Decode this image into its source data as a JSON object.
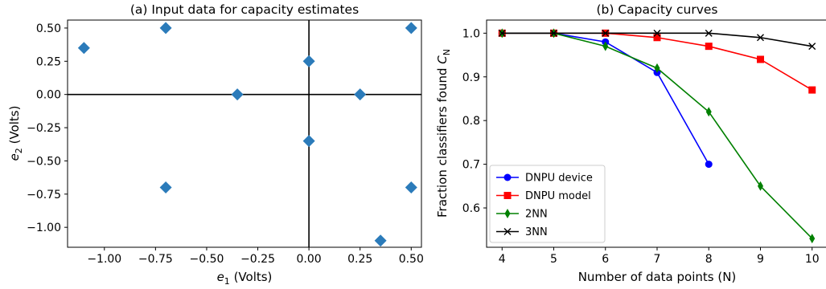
{
  "chart_data": [
    {
      "type": "scatter",
      "title": "(a) Input data for capacity estimates",
      "xlabel_var": "e",
      "xlabel_sub": "1",
      "xlabel_unit": " (Volts)",
      "ylabel_var": "e",
      "ylabel_sub": "2",
      "ylabel_unit": " (Volts)",
      "xlim": [
        -1.18,
        0.55
      ],
      "ylim": [
        -1.15,
        0.56
      ],
      "xticks": [
        -1.0,
        -0.75,
        -0.5,
        -0.25,
        0.0,
        0.25,
        0.5
      ],
      "xtick_labels": [
        "−1.00",
        "−0.75",
        "−0.50",
        "−0.25",
        "0.00",
        "0.25",
        "0.50"
      ],
      "yticks": [
        0.5,
        0.25,
        0.0,
        -0.25,
        -0.5,
        -0.75,
        -1.0
      ],
      "ytick_labels": [
        "0.50",
        "0.25",
        "0.00",
        "−0.25",
        "−0.50",
        "−0.75",
        "−1.00"
      ],
      "marker": "diamond",
      "color": "#2b7bba",
      "points": [
        {
          "x": -1.1,
          "y": 0.35
        },
        {
          "x": -0.7,
          "y": 0.5
        },
        {
          "x": 0.5,
          "y": 0.5
        },
        {
          "x": 0.0,
          "y": 0.25
        },
        {
          "x": -0.35,
          "y": 0.0
        },
        {
          "x": 0.25,
          "y": 0.0
        },
        {
          "x": 0.0,
          "y": -0.35
        },
        {
          "x": -0.7,
          "y": -0.7
        },
        {
          "x": 0.5,
          "y": -0.7
        },
        {
          "x": 0.35,
          "y": -1.1
        }
      ],
      "reference_lines": {
        "x": 0.0,
        "y": 0.0
      }
    },
    {
      "type": "line",
      "title": "(b) Capacity curves",
      "xlabel": "Number of data points (N)",
      "ylabel_text": "Fraction classifiers found ",
      "ylabel_var": "C",
      "ylabel_sub": "N",
      "xlim": [
        3.7,
        10.3
      ],
      "ylim": [
        0.51,
        1.03
      ],
      "xticks": [
        4,
        5,
        6,
        7,
        8,
        9,
        10
      ],
      "xtick_labels": [
        "4",
        "5",
        "6",
        "7",
        "8",
        "9",
        "10"
      ],
      "yticks": [
        1.0,
        0.9,
        0.8,
        0.7,
        0.6
      ],
      "ytick_labels": [
        "1.0",
        "0.9",
        "0.8",
        "0.7",
        "0.6"
      ],
      "legend_position": "lower-left",
      "series": [
        {
          "name": "DNPU device",
          "color": "#0000ff",
          "marker": "circle",
          "x": [
            4,
            5,
            6,
            7,
            8
          ],
          "y": [
            1.0,
            1.0,
            0.98,
            0.91,
            0.7
          ]
        },
        {
          "name": "DNPU model",
          "color": "#ff0000",
          "marker": "square",
          "x": [
            4,
            5,
            6,
            7,
            8,
            9,
            10
          ],
          "y": [
            1.0,
            1.0,
            1.0,
            0.99,
            0.97,
            0.94,
            0.87
          ]
        },
        {
          "name": "2NN",
          "color": "#008000",
          "marker": "thin-diamond",
          "x": [
            4,
            5,
            6,
            7,
            8,
            9,
            10
          ],
          "y": [
            1.0,
            1.0,
            0.97,
            0.92,
            0.82,
            0.65,
            0.53
          ]
        },
        {
          "name": "3NN",
          "color": "#000000",
          "marker": "x",
          "x": [
            4,
            5,
            6,
            7,
            8,
            9,
            10
          ],
          "y": [
            1.0,
            1.0,
            1.0,
            1.0,
            1.0,
            0.99,
            0.97
          ]
        }
      ]
    }
  ]
}
